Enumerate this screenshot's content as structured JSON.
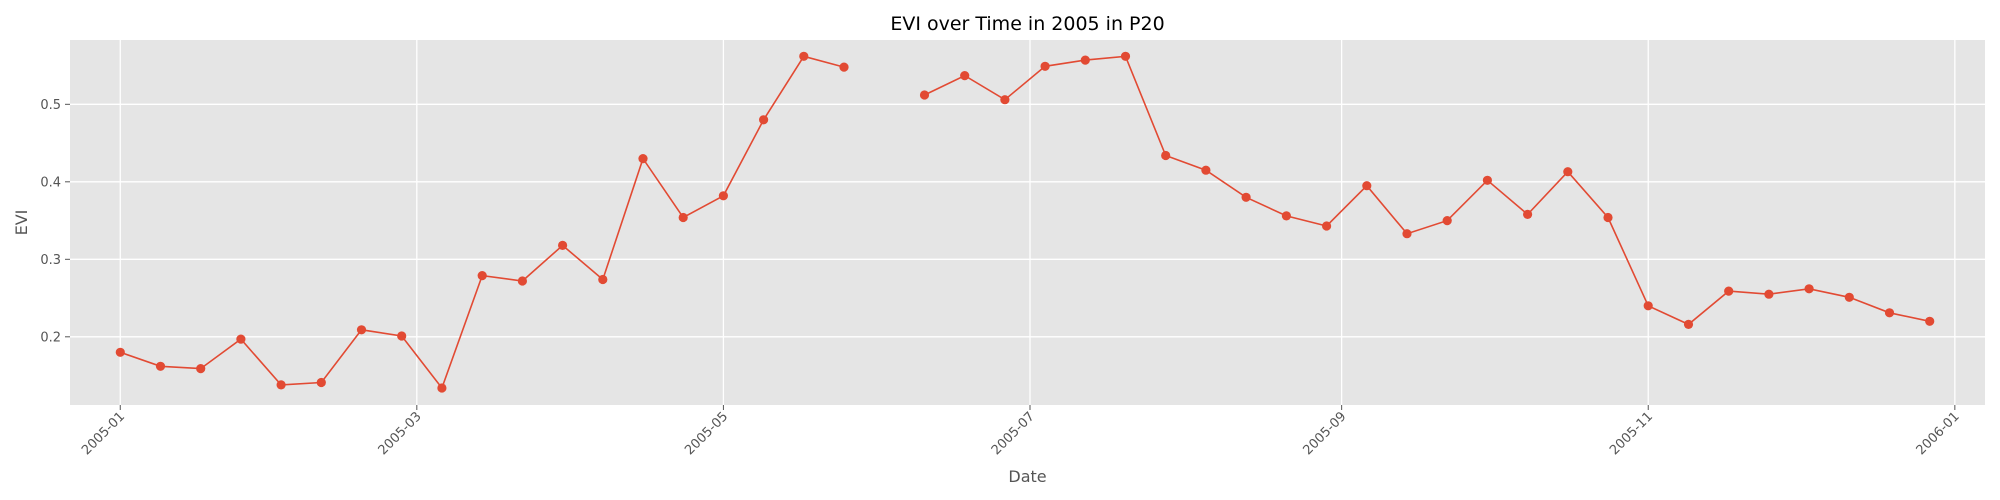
{
  "chart_data": {
    "type": "line",
    "title": "EVI over Time in 2005 in P20",
    "xlabel": "Date",
    "ylabel": "EVI",
    "grid": true,
    "colors": {
      "background": "#e5e5e5",
      "series": "#e24a33",
      "grid": "#ffffff"
    },
    "x_range": [
      "2004-12-22",
      "2006-01-07"
    ],
    "ylim": [
      0.112,
      0.583
    ],
    "x_ticks": [
      "2005-01",
      "2005-03",
      "2005-05",
      "2005-07",
      "2005-09",
      "2005-11",
      "2006-01"
    ],
    "y_ticks": [
      0.2,
      0.3,
      0.4,
      0.5
    ],
    "y_tick_labels": [
      "0.2",
      "0.3",
      "0.4",
      "0.5"
    ],
    "series": [
      {
        "x": [
          "2005-01-01",
          "2005-01-09",
          "2005-01-17",
          "2005-01-25",
          "2005-02-02",
          "2005-02-10",
          "2005-02-18",
          "2005-02-26",
          "2005-03-06",
          "2005-03-14",
          "2005-03-22",
          "2005-03-30",
          "2005-04-07",
          "2005-04-15",
          "2005-04-23",
          "2005-05-01",
          "2005-05-09",
          "2005-05-17",
          "2005-05-25",
          "2005-06-02",
          "2005-06-10",
          "2005-06-18",
          "2005-06-26",
          "2005-07-04",
          "2005-07-12",
          "2005-07-20",
          "2005-07-28",
          "2005-08-05",
          "2005-08-13",
          "2005-08-21",
          "2005-08-29",
          "2005-09-06",
          "2005-09-14",
          "2005-09-22",
          "2005-09-30",
          "2005-10-08",
          "2005-10-16",
          "2005-10-24",
          "2005-11-01",
          "2005-11-09",
          "2005-11-17",
          "2005-11-25",
          "2005-12-03",
          "2005-12-11",
          "2005-12-19",
          "2005-12-27"
        ],
        "values": [
          0.18,
          0.162,
          0.159,
          0.197,
          0.138,
          0.141,
          0.209,
          0.201,
          0.134,
          0.279,
          0.272,
          0.318,
          0.274,
          0.43,
          0.354,
          0.382,
          0.48,
          0.562,
          0.548,
          null,
          0.512,
          0.537,
          0.506,
          0.549,
          0.557,
          0.562,
          0.434,
          0.415,
          0.38,
          0.356,
          0.343,
          0.395,
          0.333,
          0.35,
          0.402,
          0.358,
          0.413,
          0.354,
          0.24,
          0.216,
          0.259,
          0.255,
          0.262,
          0.251,
          0.231,
          0.22
        ]
      }
    ]
  }
}
